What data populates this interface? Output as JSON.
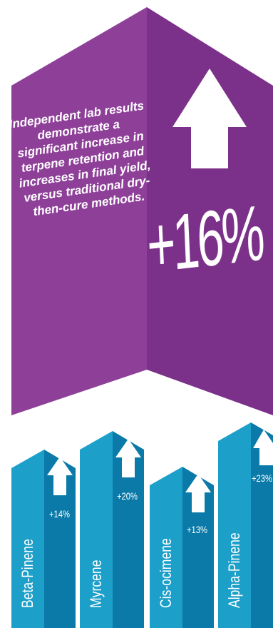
{
  "hero": {
    "text": "Independent lab results demonstrate a significant increase in terpene retention and increases in final yield, versus traditional dry-then-cure methods.",
    "percent": "+16%",
    "arrow_icon": "up-arrow-icon",
    "colors": {
      "light": "#8e4099",
      "dark": "#7b3189"
    }
  },
  "terpenes": [
    {
      "name": "Beta-Pinene",
      "percent": "+14%",
      "icon": "up-arrow-icon"
    },
    {
      "name": "Myrcene",
      "percent": "+20%",
      "icon": "up-arrow-icon"
    },
    {
      "name": "Cis-ocimene",
      "percent": "+13%",
      "icon": "up-arrow-icon"
    },
    {
      "name": "Alpha-Pinene",
      "percent": "+23%",
      "icon": "up-arrow-icon"
    }
  ],
  "pennant_colors": {
    "light": "#1c9fc9",
    "dark": "#0b7aa8"
  }
}
